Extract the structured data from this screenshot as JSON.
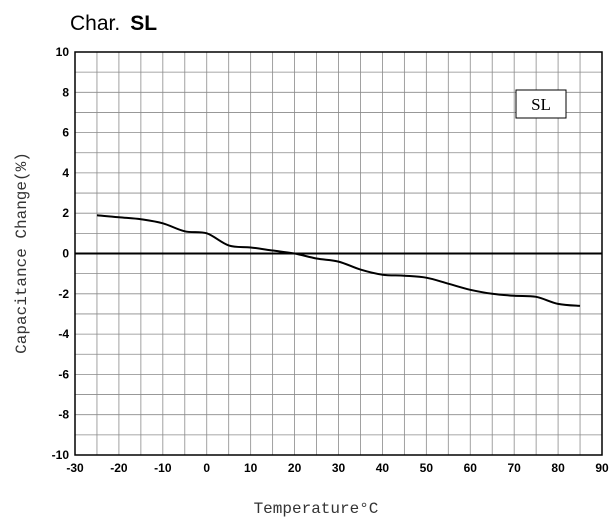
{
  "chart_data": {
    "type": "line",
    "title_prefix": "Char.",
    "title_suffix": "SL",
    "xlabel": "Temperature°C",
    "ylabel": "Capacitance Change(%)",
    "xlim": [
      -30,
      90
    ],
    "ylim": [
      -10,
      10
    ],
    "x_ticks": [
      -30,
      -20,
      -10,
      0,
      10,
      20,
      30,
      40,
      50,
      60,
      70,
      80,
      90
    ],
    "y_ticks": [
      -10,
      -8,
      -6,
      -4,
      -2,
      0,
      2,
      4,
      6,
      8,
      10
    ],
    "grid": true,
    "legend_position": "top-right",
    "series": [
      {
        "name": "SL",
        "x": [
          -25,
          -20,
          -15,
          -10,
          -5,
          0,
          5,
          10,
          15,
          20,
          25,
          30,
          35,
          40,
          45,
          50,
          55,
          60,
          65,
          70,
          75,
          80,
          85
        ],
        "y": [
          1.9,
          1.8,
          1.7,
          1.5,
          1.1,
          1.0,
          0.4,
          0.3,
          0.15,
          0.0,
          -0.25,
          -0.4,
          -0.8,
          -1.05,
          -1.1,
          -1.2,
          -1.5,
          -1.8,
          -2.0,
          -2.1,
          -2.15,
          -2.5,
          -2.6
        ],
        "color": "#000000"
      }
    ]
  }
}
